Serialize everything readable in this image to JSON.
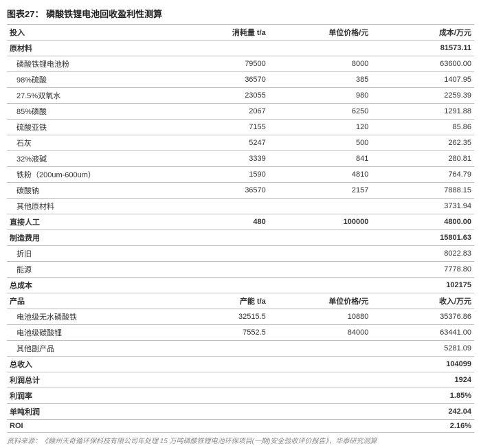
{
  "title": "图表27：  磷酸铁锂电池回收盈利性测算",
  "headers_cost": {
    "c1": "投入",
    "c2": "消耗量 t/a",
    "c3": "单位价格/元",
    "c4": "成本/万元"
  },
  "headers_rev": {
    "c1": "产品",
    "c2": "产能 t/a",
    "c3": "单位价格/元",
    "c4": "收入/万元"
  },
  "raw_materials_label": "原材料",
  "raw_materials_total": "81573.11",
  "raw_materials": [
    {
      "name": "磷酸铁锂电池粉",
      "qty": "79500",
      "price": "8000",
      "cost": "63600.00"
    },
    {
      "name": "98%硫酸",
      "qty": "36570",
      "price": "385",
      "cost": "1407.95"
    },
    {
      "name": "27.5%双氧水",
      "qty": "23055",
      "price": "980",
      "cost": "2259.39"
    },
    {
      "name": "85%磷酸",
      "qty": "2067",
      "price": "6250",
      "cost": "1291.88"
    },
    {
      "name": "硫酸亚铁",
      "qty": "7155",
      "price": "120",
      "cost": "85.86"
    },
    {
      "name": "石灰",
      "qty": "5247",
      "price": "500",
      "cost": "262.35"
    },
    {
      "name": "32%液碱",
      "qty": "3339",
      "price": "841",
      "cost": "280.81"
    },
    {
      "name": "铁粉（200um-600um）",
      "qty": "1590",
      "price": "4810",
      "cost": "764.79"
    },
    {
      "name": "碳酸钠",
      "qty": "36570",
      "price": "2157",
      "cost": "7888.15"
    },
    {
      "name": "其他原材料",
      "qty": "",
      "price": "",
      "cost": "3731.94"
    }
  ],
  "direct_labor": {
    "name": "直接人工",
    "qty": "480",
    "price": "100000",
    "cost": "4800.00"
  },
  "mfg_label": "制造费用",
  "mfg_total": "15801.63",
  "mfg_items": [
    {
      "name": "折旧",
      "cost": "8022.83"
    },
    {
      "name": "能源",
      "cost": "7778.80"
    }
  ],
  "total_cost": {
    "label": "总成本",
    "value": "102175"
  },
  "products": [
    {
      "name": "电池级无水磷酸铁",
      "qty": "32515.5",
      "price": "10880",
      "rev": "35376.86"
    },
    {
      "name": "电池级碳酸锂",
      "qty": "7552.5",
      "price": "84000",
      "rev": "63441.00"
    },
    {
      "name": "其他副产品",
      "qty": "",
      "price": "",
      "rev": "5281.09"
    }
  ],
  "total_rev": {
    "label": "总收入",
    "value": "104099"
  },
  "profit": {
    "label": "利润总计",
    "value": "1924"
  },
  "margin": {
    "label": "利润率",
    "value": "1.85%"
  },
  "per_ton": {
    "label": "单吨利润",
    "value": "242.04"
  },
  "roi": {
    "label": "ROI",
    "value": "2.16%"
  },
  "source": "资料来源：《赣州天奇循环保科技有限公司年处理 15 万吨磷酸铁锂电池环保项目(一期)安全验收评价报告》，华泰研究测算"
}
